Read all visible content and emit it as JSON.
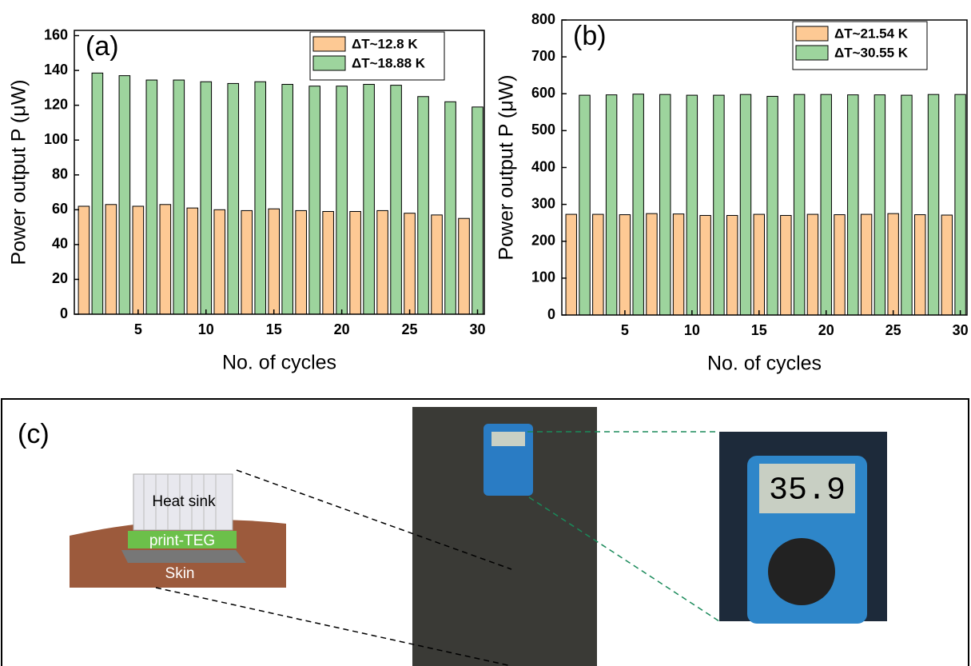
{
  "chart_data": [
    {
      "type": "bar",
      "panel_label": "(a)",
      "xlabel": "No. of cycles",
      "ylabel": "Power output P (μW)",
      "xlim": [
        0.3,
        30.5
      ],
      "xticks": [
        5,
        10,
        15,
        20,
        25,
        30
      ],
      "ylim": [
        0,
        163
      ],
      "yticks": [
        0,
        20,
        40,
        60,
        80,
        100,
        120,
        140,
        160
      ],
      "legend": "upper right",
      "series": [
        {
          "name": "ΔT~12.8 K",
          "color": "#fdc994",
          "x": [
            1,
            3,
            5,
            7,
            9,
            11,
            13,
            15,
            17,
            19,
            21,
            23,
            25,
            27,
            29
          ],
          "values": [
            62,
            63,
            62,
            63,
            61,
            60,
            59.5,
            60.5,
            59.5,
            59,
            59,
            59.5,
            58,
            57,
            55
          ]
        },
        {
          "name": "ΔT~18.88 K",
          "color": "#9dd49d",
          "x": [
            2,
            4,
            6,
            8,
            10,
            12,
            14,
            16,
            18,
            20,
            22,
            24,
            26,
            28,
            30
          ],
          "values": [
            138.5,
            137,
            134.5,
            134.5,
            133.5,
            132.5,
            133.5,
            132,
            131,
            131,
            132,
            131.5,
            125,
            122,
            119
          ]
        }
      ]
    },
    {
      "type": "bar",
      "panel_label": "(b)",
      "xlabel": "No. of cycles",
      "ylabel": "Power output P (μW)",
      "xlim": [
        0.3,
        30.5
      ],
      "xticks": [
        5,
        10,
        15,
        20,
        25,
        30
      ],
      "ylim": [
        0,
        800
      ],
      "yticks": [
        0,
        100,
        200,
        300,
        400,
        500,
        600,
        700,
        800
      ],
      "legend": "upper right",
      "series": [
        {
          "name": "ΔT~21.54 K",
          "color": "#fdc994",
          "x": [
            1,
            3,
            5,
            7,
            9,
            11,
            13,
            15,
            17,
            19,
            21,
            23,
            25,
            27,
            29
          ],
          "values": [
            273,
            273,
            272,
            275,
            274,
            270,
            270,
            273,
            270,
            273,
            272,
            273,
            275,
            272,
            271
          ]
        },
        {
          "name": "ΔT~30.55 K",
          "color": "#9dd49d",
          "x": [
            2,
            4,
            6,
            8,
            10,
            12,
            14,
            16,
            18,
            20,
            22,
            24,
            26,
            28,
            30
          ],
          "values": [
            596,
            597,
            599,
            598,
            596,
            596,
            598,
            593,
            598,
            598,
            597,
            597,
            596,
            598,
            598
          ]
        }
      ]
    }
  ],
  "panel_c": {
    "label": "(c)",
    "heat_sink": "Heat sink",
    "teg": "print-TEG",
    "skin": "Skin",
    "display": "35.9"
  }
}
